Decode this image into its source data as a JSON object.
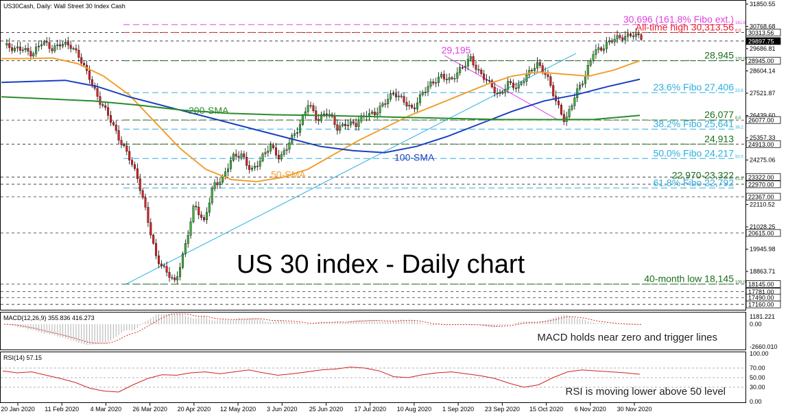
{
  "header": {
    "symbol_line": "US30Cash, Daily:  Wall Street 30 Index Cash"
  },
  "main_title": "US 30 index - Daily chart",
  "chart_data": [
    {
      "type": "line",
      "panel": "price",
      "title": "US 30 index - Daily chart",
      "x_tick_labels": [
        "20 Jan 2020",
        "11 Feb 2020",
        "4 Mar 2020",
        "26 Mar 2020",
        "20 Apr 2020",
        "12 May 2020",
        "3 Jun 2020",
        "25 Jun 2020",
        "17 Jul 2020",
        "10 Aug 2020",
        "1 Sep 2020",
        "23 Sep 2020",
        "15 Oct 2020",
        "6 Nov 2020",
        "30 Nov 2020"
      ],
      "y_tick_labels": [
        "31850.55",
        "30768.68",
        "29686.81",
        "28604.14",
        "27521.87",
        "26439.60",
        "25357.33",
        "24275.06",
        "23192.79",
        "22110.52",
        "21028.25",
        "19945.98",
        "18863.71"
      ],
      "ylim": [
        16900,
        31850.55
      ],
      "price_tags": [
        {
          "label": "30313.56",
          "dark": false
        },
        {
          "label": "29897.75",
          "dark": true
        },
        {
          "label": "28945.00",
          "dark": false
        },
        {
          "label": "26077.00",
          "dark": false
        },
        {
          "label": "24913.00",
          "dark": false
        },
        {
          "label": "23322.00",
          "dark": false
        },
        {
          "label": "22970.00",
          "dark": false
        },
        {
          "label": "22367.00",
          "dark": false
        },
        {
          "label": "20615.00",
          "dark": false
        },
        {
          "label": "18145.00",
          "dark": false
        },
        {
          "label": "17781.00",
          "dark": false
        },
        {
          "label": "17490.00",
          "dark": false
        },
        {
          "label": "17160.00",
          "dark": false
        }
      ],
      "levels": [
        {
          "value": 30696,
          "label": "30,696 (161.8% Fibo ext.)",
          "color": "#e040e0",
          "style": "dash",
          "fibo_tag": "161.8"
        },
        {
          "value": 30313.56,
          "label": "All-time high 30,313.56",
          "color": "#e8202a",
          "style": "dash",
          "fibo_tag": "0.0"
        },
        {
          "value": 29195,
          "label": "29,195",
          "color": "#e040e0",
          "style": "none",
          "fibo_tag": ""
        },
        {
          "value": 28945,
          "label": "28,945",
          "color": "#1a6e1a",
          "style": "dash",
          "fibo_tag": "100.0"
        },
        {
          "value": 27406,
          "label": "23.6% Fibo 27,406",
          "color": "#2aaee0",
          "style": "dash",
          "fibo_tag": "23.6"
        },
        {
          "value": 26077,
          "label": "26,077",
          "color": "#1a6e1a",
          "style": "dash",
          "fibo_tag": "0.0"
        },
        {
          "value": 25641,
          "label": "38.2% Fibo 25,641",
          "color": "#2aaee0",
          "style": "dash",
          "fibo_tag": "38.2"
        },
        {
          "value": 24913,
          "label": "24,913",
          "color": "#1a6e1a",
          "style": "dash",
          "fibo_tag": ""
        },
        {
          "value": 24217,
          "label": "50.0% Fibo 24,217",
          "color": "#2aaee0",
          "style": "dash",
          "fibo_tag": "50.0"
        },
        {
          "value": 23146,
          "label": "22,970-23,322",
          "color": "#1a6e1a",
          "style": "none",
          "fibo_tag": "61.8"
        },
        {
          "value": 22792,
          "label": "61.8% Fibo 22,792",
          "color": "#2aaee0",
          "style": "dash",
          "fibo_tag": ""
        },
        {
          "value": 18145,
          "label": "40-month low 18,145",
          "color": "#1a6e1a",
          "style": "dash",
          "fibo_tag": "100.0"
        }
      ],
      "series": [
        {
          "name": "50-SMA",
          "color": "#f0a030",
          "values": [
            29050,
            29050,
            29080,
            28800,
            28200,
            27300,
            26000,
            24700,
            23700,
            23200,
            23100,
            23300,
            23700,
            24400,
            25100,
            25700,
            26300,
            26800,
            27300,
            27800,
            28200,
            28400,
            28300,
            28200,
            28500,
            28950
          ]
        },
        {
          "name": "100-SMA",
          "color": "#1a3fc0",
          "values": [
            27900,
            27950,
            28000,
            27700,
            27200,
            26800,
            26400,
            26000,
            25600,
            25200,
            24800,
            24600,
            24500,
            24800,
            25300,
            25900,
            26500,
            27000,
            27300,
            27700,
            28050
          ]
        },
        {
          "name": "200-SMA",
          "color": "#2a8a2a",
          "values": [
            27200,
            27100,
            27000,
            26800,
            26550,
            26400,
            26330,
            26300,
            26250,
            26200,
            26150,
            26100,
            26100,
            26110,
            26300
          ]
        }
      ],
      "ohlc_path": [
        29700,
        29400,
        29600,
        29300,
        29800,
        29500,
        29900,
        29600,
        29000,
        28200,
        27000,
        26200,
        25300,
        24500,
        23200,
        21500,
        19500,
        18700,
        18145,
        20000,
        22000,
        21000,
        23000,
        23300,
        24200,
        24400,
        23700,
        24100,
        24800,
        24300,
        25000,
        25600,
        27000,
        26100,
        26400,
        25700,
        26000,
        25800,
        26300,
        26500,
        26900,
        27300,
        27100,
        26600,
        27300,
        27900,
        28300,
        27900,
        28500,
        29195,
        28300,
        27800,
        27300,
        27900,
        27500,
        28300,
        28900,
        28200,
        27000,
        26077,
        27200,
        28000,
        29500,
        29600,
        29900,
        30100,
        30313,
        30000
      ]
    },
    {
      "type": "line",
      "panel": "macd",
      "title": "MACD(12,26,9) 355.836 416.273",
      "y_tick_labels": [
        "1181.221",
        "0.00",
        "-2660.010"
      ],
      "annotation": "MACD holds near zero and trigger lines"
    },
    {
      "type": "line",
      "panel": "rsi",
      "title": "RSI(14) 57.15",
      "y_tick_labels": [
        "100.00",
        "70.00",
        "50.00",
        "30.00",
        "0.00"
      ],
      "ylim": [
        0,
        100
      ],
      "annotation": "RSI is moving lower above 50 level",
      "values": [
        64,
        60,
        62,
        55,
        48,
        40,
        28,
        22,
        20,
        35,
        48,
        56,
        55,
        60,
        62,
        58,
        62,
        66,
        60,
        55,
        58,
        62,
        66,
        68,
        72,
        70,
        64,
        52,
        50,
        56,
        60,
        62,
        58,
        54,
        48,
        38,
        30,
        35,
        50,
        62,
        66,
        64,
        62,
        60,
        57
      ]
    }
  ]
}
